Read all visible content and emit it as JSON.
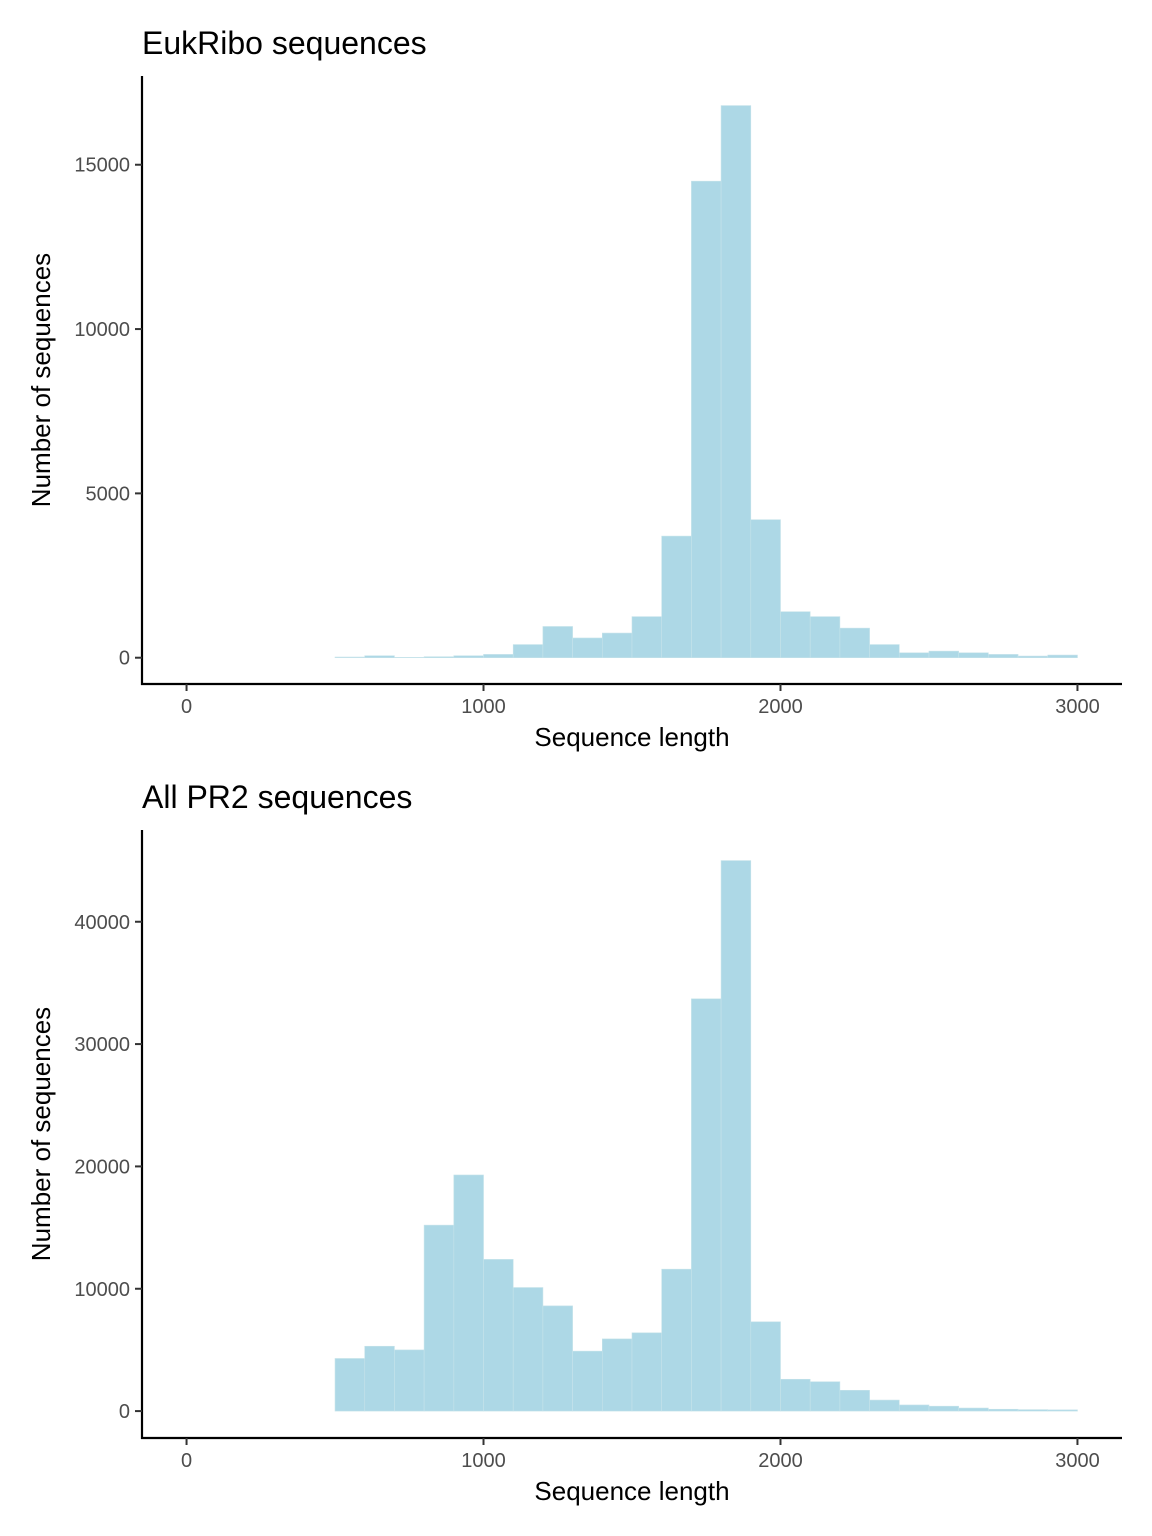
{
  "colors": {
    "bar_fill": "#add8e6",
    "axis": "#000000",
    "tick_label": "#4d4d4d"
  },
  "chart_data": [
    {
      "type": "bar",
      "title": "EukRibo sequences",
      "xlabel": "Sequence length",
      "ylabel": "Number of sequences",
      "bin_width": 100,
      "x": [
        550,
        650,
        750,
        850,
        950,
        1050,
        1150,
        1250,
        1350,
        1450,
        1550,
        1650,
        1750,
        1850,
        1950,
        2050,
        2150,
        2250,
        2350,
        2450,
        2550,
        2650,
        2750,
        2850,
        2950
      ],
      "values": [
        20,
        60,
        10,
        30,
        60,
        100,
        400,
        950,
        600,
        750,
        1250,
        3700,
        14500,
        16800,
        4200,
        1400,
        1250,
        900,
        400,
        150,
        200,
        150,
        100,
        50,
        80
      ],
      "xlim": [
        -150,
        3150
      ],
      "ylim": [
        -800,
        17700
      ],
      "xticks": [
        0,
        1000,
        2000,
        3000
      ],
      "xtick_labels": [
        "0",
        "1000",
        "2000",
        "3000"
      ],
      "yticks": [
        0,
        5000,
        10000,
        15000
      ],
      "ytick_labels": [
        "0",
        "5000",
        "10000",
        "15000"
      ],
      "grid": false,
      "legend": "none"
    },
    {
      "type": "bar",
      "title": "All PR2 sequences",
      "xlabel": "Sequence length",
      "ylabel": "Number of sequences",
      "bin_width": 100,
      "x": [
        550,
        650,
        750,
        850,
        950,
        1050,
        1150,
        1250,
        1350,
        1450,
        1550,
        1650,
        1750,
        1850,
        1950,
        2050,
        2150,
        2250,
        2350,
        2450,
        2550,
        2650,
        2750,
        2850,
        2950
      ],
      "values": [
        4300,
        5300,
        5000,
        15200,
        19300,
        12400,
        10100,
        8600,
        4900,
        5900,
        6400,
        11600,
        33700,
        45000,
        7300,
        2600,
        2400,
        1700,
        900,
        500,
        400,
        250,
        150,
        120,
        100
      ],
      "xlim": [
        -150,
        3150
      ],
      "ylim": [
        -2200,
        47500
      ],
      "xticks": [
        0,
        1000,
        2000,
        3000
      ],
      "xtick_labels": [
        "0",
        "1000",
        "2000",
        "3000"
      ],
      "yticks": [
        0,
        10000,
        20000,
        30000,
        40000
      ],
      "ytick_labels": [
        "0",
        "10000",
        "20000",
        "30000",
        "40000"
      ],
      "grid": false,
      "legend": "none"
    }
  ]
}
